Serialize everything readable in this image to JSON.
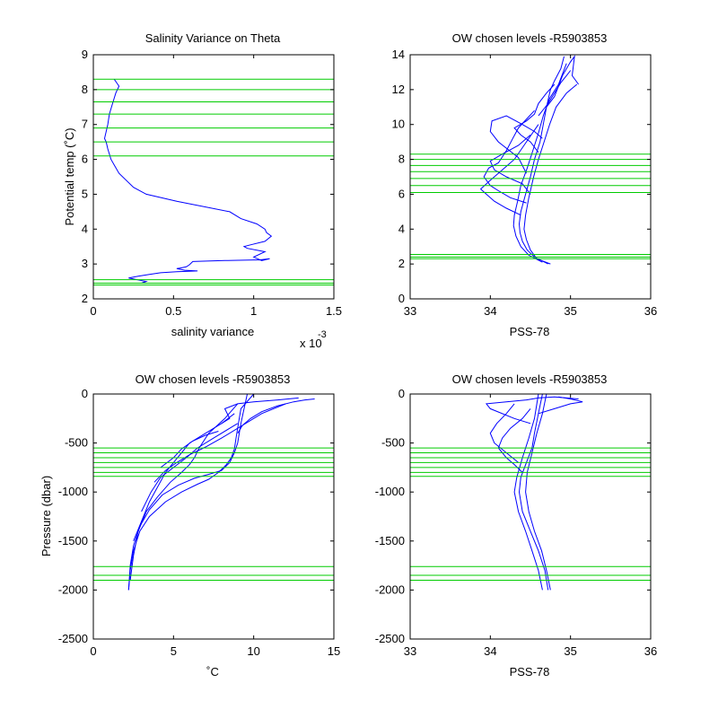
{
  "colors": {
    "data_line": "#0000ff",
    "level_line": "#00cc00",
    "axes": "#000000",
    "background": "#ffffff"
  },
  "chart_data": [
    {
      "type": "line",
      "title": "Salinity Variance on Theta",
      "xlabel": "salinity variance",
      "ylabel": "Potential temp (˚C)",
      "x_multiplier": "x 10",
      "x_exponent": "-3",
      "xlim": [
        0,
        0.0015
      ],
      "ylim": [
        2,
        9
      ],
      "xticks": [
        0,
        0.0005,
        0.001,
        0.0015
      ],
      "xtick_labels": [
        "0",
        "0.5",
        "1",
        "1.5"
      ],
      "yticks": [
        2,
        3,
        4,
        5,
        6,
        7,
        8,
        9
      ],
      "ytick_labels": [
        "2",
        "3",
        "4",
        "5",
        "6",
        "7",
        "8",
        "9"
      ],
      "series": [
        {
          "x": [
            0.00013,
            0.00016,
            0.00014,
            0.00012,
            0.0001,
            9e-05,
            8e-05,
            7e-05,
            8e-05,
            9e-05,
            0.00011,
            0.00016,
            0.00025,
            0.00033,
            0.00052,
            0.00085,
            0.00092,
            0.00102,
            0.00107,
            0.00108,
            0.00111,
            0.00107,
            0.00098,
            0.00094,
            0.00096,
            0.00107,
            0.001,
            0.00105,
            0.0011,
            0.00104,
            0.00082,
            0.00062,
            0.0006,
            0.00058,
            0.00054,
            0.00052,
            0.00057,
            0.00065,
            0.00052,
            0.00042,
            0.00035,
            0.00028,
            0.00022,
            0.00033,
            0.0003
          ],
          "y": [
            8.3,
            8.1,
            7.9,
            7.6,
            7.3,
            7.0,
            6.8,
            6.6,
            6.5,
            6.3,
            6.0,
            5.6,
            5.2,
            5.0,
            4.8,
            4.5,
            4.3,
            4.15,
            4.0,
            3.9,
            3.8,
            3.65,
            3.55,
            3.5,
            3.45,
            3.35,
            3.2,
            3.1,
            3.15,
            3.12,
            3.1,
            3.07,
            2.98,
            2.92,
            2.88,
            2.87,
            2.82,
            2.8,
            2.78,
            2.75,
            2.7,
            2.65,
            2.6,
            2.5,
            2.45
          ]
        }
      ],
      "hlines": [
        2.4,
        2.45,
        2.55,
        6.1,
        6.5,
        6.9,
        7.3,
        7.65,
        8.0,
        8.3
      ]
    },
    {
      "type": "line",
      "title": "OW chosen levels -R5903853",
      "xlabel": "PSS-78",
      "ylabel": "",
      "xlim": [
        33,
        36
      ],
      "ylim": [
        0,
        14
      ],
      "xticks": [
        33,
        34,
        35,
        36
      ],
      "xtick_labels": [
        "33",
        "34",
        "35",
        "36"
      ],
      "yticks": [
        0,
        2,
        4,
        6,
        8,
        10,
        12,
        14
      ],
      "ytick_labels": [
        "0",
        "2",
        "4",
        "6",
        "8",
        "10",
        "12",
        "14"
      ],
      "series": [
        {
          "x": [
            34.72,
            34.55,
            34.46,
            34.4,
            34.37,
            34.36,
            34.38,
            34.44,
            34.5,
            34.55,
            34.62,
            34.66,
            34.7,
            34.75,
            34.8,
            34.88,
            34.92
          ],
          "y": [
            2.0,
            2.4,
            2.8,
            3.3,
            3.8,
            4.3,
            5.0,
            6.0,
            7.0,
            8.0,
            9.0,
            10.0,
            11.0,
            12.0,
            12.5,
            13.2,
            13.9
          ]
        },
        {
          "x": [
            34.65,
            34.48,
            34.38,
            34.32,
            34.29,
            34.3,
            34.34,
            34.38,
            34.46,
            34.53,
            34.6,
            34.66,
            34.74,
            34.85,
            34.95
          ],
          "y": [
            2.1,
            2.5,
            3.0,
            3.6,
            4.2,
            4.8,
            5.6,
            6.5,
            7.5,
            8.5,
            9.5,
            10.5,
            11.5,
            12.3,
            13.5
          ]
        },
        {
          "x": [
            34.75,
            34.58,
            34.5,
            34.45,
            34.42,
            34.44,
            34.48,
            34.54,
            34.6,
            34.67,
            34.74,
            34.82,
            34.95,
            35.08
          ],
          "y": [
            2.0,
            2.3,
            2.8,
            3.4,
            4.0,
            4.8,
            5.8,
            7.0,
            8.0,
            9.0,
            10.0,
            11.0,
            11.8,
            12.3
          ]
        },
        {
          "x": [
            34.38,
            34.2,
            34.05,
            33.95,
            33.88,
            34.0,
            34.15,
            34.3,
            34.45,
            34.6
          ],
          "y": [
            4.8,
            5.2,
            5.6,
            6.0,
            6.3,
            6.8,
            7.4,
            8.0,
            9.0,
            10.0
          ]
        },
        {
          "x": [
            34.45,
            34.25,
            34.1,
            34.0,
            33.92,
            33.98,
            34.1,
            34.2,
            34.28,
            34.35,
            34.45,
            34.55
          ],
          "y": [
            5.5,
            5.8,
            6.2,
            6.5,
            7.0,
            7.5,
            7.8,
            8.5,
            9.2,
            9.8,
            10.3,
            10.8
          ]
        },
        {
          "x": [
            34.5,
            34.4,
            34.2,
            34.05,
            34.0,
            34.15,
            34.35,
            34.5
          ],
          "y": [
            6.0,
            6.6,
            7.0,
            7.4,
            7.9,
            8.3,
            8.8,
            9.4
          ]
        },
        {
          "x": [
            34.45,
            34.35,
            34.1,
            34.0,
            34.02,
            34.2,
            34.4,
            34.55,
            34.65
          ],
          "y": [
            7.2,
            8.1,
            9.0,
            9.6,
            10.2,
            10.5,
            10.0,
            9.6,
            9.2
          ]
        },
        {
          "x": [
            34.6,
            34.5,
            34.38,
            34.3,
            34.45,
            34.55,
            34.6,
            34.7,
            34.8
          ],
          "y": [
            8.4,
            9.0,
            9.4,
            9.8,
            10.2,
            10.6,
            11.2,
            11.8,
            12.3
          ]
        },
        {
          "x": [
            34.7,
            34.8,
            34.85,
            34.9,
            34.95,
            35.0,
            35.05,
            35.02,
            35.1
          ],
          "y": [
            11.0,
            11.6,
            12.2,
            12.8,
            13.2,
            13.6,
            13.9,
            12.8,
            12.3
          ]
        },
        {
          "x": [
            34.6,
            34.72,
            34.8,
            34.88,
            34.95,
            35.0
          ],
          "y": [
            10.5,
            11.2,
            11.8,
            12.4,
            12.8,
            13.1
          ]
        }
      ],
      "hlines": [
        2.3,
        2.4,
        2.55,
        6.1,
        6.5,
        6.9,
        7.3,
        7.65,
        8.0,
        8.3
      ]
    },
    {
      "type": "line",
      "title": "OW chosen levels -R5903853",
      "xlabel": "˚C",
      "ylabel": "Pressure (dbar)",
      "xlim": [
        0,
        15
      ],
      "ylim": [
        -2500,
        0
      ],
      "xticks": [
        0,
        5,
        10,
        15
      ],
      "xtick_labels": [
        "0",
        "5",
        "10",
        "15"
      ],
      "yticks": [
        -2500,
        -2000,
        -1500,
        -1000,
        -500,
        0
      ],
      "ytick_labels": [
        "-2500",
        "-2000",
        "-1500",
        "-1000",
        "-500",
        "0"
      ],
      "series": [
        {
          "x": [
            2.2,
            2.3,
            2.5,
            2.9,
            3.5,
            4.5,
            5.5,
            6.5,
            7.2,
            7.8,
            8.3,
            8.6,
            8.8,
            8.9,
            9.0,
            9.2,
            10.0
          ],
          "y": [
            -2000,
            -1800,
            -1600,
            -1400,
            -1250,
            -1100,
            -1000,
            -920,
            -870,
            -800,
            -720,
            -650,
            -560,
            -450,
            -350,
            -150,
            0
          ]
        },
        {
          "x": [
            2.2,
            2.3,
            2.5,
            2.9,
            3.5,
            4.3,
            5.3,
            6.3,
            7.2,
            8.0,
            8.5,
            8.8,
            9.0,
            9.2,
            9.6
          ],
          "y": [
            -2000,
            -1750,
            -1550,
            -1350,
            -1180,
            -1030,
            -930,
            -860,
            -820,
            -780,
            -700,
            -600,
            -500,
            -300,
            0
          ]
        },
        {
          "x": [
            2.3,
            2.5,
            2.8,
            3.3,
            4.0,
            4.8,
            5.5,
            6.0,
            6.3,
            6.6,
            7.2,
            8.2,
            9.0
          ],
          "y": [
            -1900,
            -1650,
            -1400,
            -1200,
            -1050,
            -900,
            -800,
            -720,
            -650,
            -550,
            -400,
            -250,
            -100
          ]
        },
        {
          "x": [
            2.5,
            3.0,
            3.5,
            4.0,
            4.5,
            5.0,
            5.5,
            6.0,
            7.0,
            8.0,
            8.8
          ],
          "y": [
            -1500,
            -1300,
            -1100,
            -950,
            -800,
            -700,
            -600,
            -500,
            -400,
            -300,
            -200
          ]
        },
        {
          "x": [
            3.0,
            3.6,
            4.2,
            5.0,
            5.8,
            6.5,
            7.5,
            8.5,
            9.0
          ],
          "y": [
            -1200,
            -1000,
            -850,
            -750,
            -650,
            -550,
            -450,
            -350,
            -300
          ]
        },
        {
          "x": [
            3.8,
            4.5,
            5.2,
            6.0,
            7.0,
            8.0,
            9.0,
            10.5,
            12.0
          ],
          "y": [
            -900,
            -780,
            -700,
            -620,
            -540,
            -450,
            -350,
            -200,
            -100
          ]
        },
        {
          "x": [
            9.0,
            9.3,
            9.8,
            10.5,
            11.5,
            12.5,
            13.2,
            13.8
          ],
          "y": [
            -400,
            -320,
            -250,
            -180,
            -120,
            -80,
            -60,
            -50
          ]
        },
        {
          "x": [
            8.0,
            8.5,
            8.2,
            9.0,
            10.0,
            11.5,
            12.8
          ],
          "y": [
            -300,
            -250,
            -150,
            -100,
            -80,
            -60,
            -40
          ]
        },
        {
          "x": [
            4.2,
            5.0,
            5.5,
            6.2,
            7.0,
            7.8
          ],
          "y": [
            -750,
            -650,
            -560,
            -480,
            -420,
            -380
          ]
        }
      ],
      "hlines": [
        -550,
        -600,
        -650,
        -700,
        -750,
        -800,
        -840,
        -1760,
        -1850,
        -1900
      ]
    },
    {
      "type": "line",
      "title": "OW chosen levels -R5903853",
      "xlabel": "PSS-78",
      "ylabel": "",
      "xlim": [
        33,
        36
      ],
      "ylim": [
        -2500,
        0
      ],
      "xticks": [
        33,
        34,
        35,
        36
      ],
      "xtick_labels": [
        "33",
        "34",
        "35",
        "36"
      ],
      "yticks": [
        -2500,
        -2000,
        -1500,
        -1000,
        -500,
        0
      ],
      "ytick_labels": [
        "-2500",
        "-2000",
        "-1500",
        "-1000",
        "-500",
        "0"
      ],
      "series": [
        {
          "x": [
            34.72,
            34.68,
            34.6,
            34.5,
            34.4,
            34.36,
            34.38,
            34.45,
            34.52,
            34.55,
            34.6,
            34.65
          ],
          "y": [
            -2000,
            -1800,
            -1600,
            -1400,
            -1200,
            -1000,
            -850,
            -700,
            -550,
            -400,
            -200,
            0
          ]
        },
        {
          "x": [
            34.65,
            34.6,
            34.52,
            34.44,
            34.35,
            34.3,
            34.33,
            34.4,
            34.48,
            34.55,
            34.6
          ],
          "y": [
            -2000,
            -1800,
            -1600,
            -1400,
            -1200,
            -1000,
            -850,
            -650,
            -450,
            -250,
            0
          ]
        },
        {
          "x": [
            34.75,
            34.7,
            34.64,
            34.55,
            34.48,
            34.44,
            34.46,
            34.52,
            34.58,
            34.65,
            34.7
          ],
          "y": [
            -2000,
            -1800,
            -1600,
            -1400,
            -1200,
            -1000,
            -800,
            -600,
            -400,
            -200,
            0
          ]
        },
        {
          "x": [
            34.4,
            34.3,
            34.2,
            34.1,
            34.15,
            34.25,
            34.4,
            34.5
          ],
          "y": [
            -800,
            -720,
            -650,
            -550,
            -450,
            -350,
            -250,
            -150
          ]
        },
        {
          "x": [
            34.35,
            34.2,
            34.05,
            34.0,
            34.08,
            34.2,
            34.3
          ],
          "y": [
            -700,
            -600,
            -500,
            -400,
            -300,
            -200,
            -100
          ]
        },
        {
          "x": [
            34.5,
            34.3,
            34.0,
            33.95,
            34.2,
            34.45,
            34.6,
            34.8,
            35.1
          ],
          "y": [
            -300,
            -250,
            -150,
            -100,
            -80,
            -60,
            -40,
            -30,
            -50
          ]
        },
        {
          "x": [
            34.6,
            34.8,
            35.0,
            35.15,
            35.0,
            34.85
          ],
          "y": [
            -200,
            -150,
            -100,
            -80,
            -50,
            -30
          ]
        }
      ],
      "hlines": [
        -550,
        -600,
        -650,
        -700,
        -750,
        -800,
        -840,
        -1760,
        -1850,
        -1900
      ]
    }
  ]
}
